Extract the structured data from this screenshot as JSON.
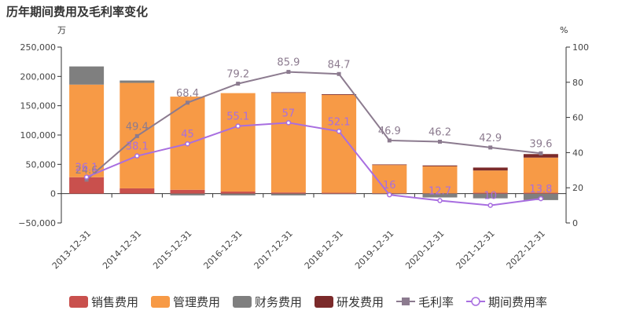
{
  "chart_data": {
    "type": "bar",
    "title": "历年期间费用及毛利率变化",
    "left_unit": "万",
    "right_unit": "%",
    "categories": [
      "2013-12-31",
      "2014-12-31",
      "2015-12-31",
      "2016-12-31",
      "2017-12-31",
      "2018-12-31",
      "2019-12-31",
      "2020-12-31",
      "2021-12-31",
      "2022-12-31"
    ],
    "left_axis": {
      "min": -50000,
      "max": 250000,
      "ticks": [
        -50000,
        0,
        50000,
        100000,
        150000,
        200000,
        250000
      ],
      "tick_labels": [
        "−50,000",
        "0",
        "50,000",
        "100,000",
        "150,000",
        "200,000",
        "250,000"
      ]
    },
    "right_axis": {
      "min": 0,
      "max": 100,
      "ticks": [
        0,
        20,
        40,
        60,
        80,
        100
      ],
      "tick_labels": [
        "0",
        "20",
        "40",
        "60",
        "80",
        "100"
      ]
    },
    "bar_series": [
      {
        "name": "销售费用",
        "color": "#c9504d",
        "values": [
          28000,
          9000,
          6500,
          3500,
          2000,
          1500,
          800,
          600,
          1500,
          1500
        ]
      },
      {
        "name": "管理费用",
        "color": "#f79a46",
        "values": [
          158000,
          180000,
          159000,
          168000,
          170000,
          167000,
          48000,
          46000,
          38000,
          60000
        ]
      },
      {
        "name": "财务费用",
        "color": "#7f7f7f",
        "values": [
          31000,
          4000,
          -3000,
          -3000,
          -3000,
          -1000,
          -1000,
          -6500,
          -8000,
          -11000
        ]
      },
      {
        "name": "研发费用",
        "color": "#7b2a2a",
        "values": [
          0,
          0,
          0,
          0,
          1000,
          1200,
          1000,
          1500,
          5000,
          6000
        ]
      }
    ],
    "line_series": [
      {
        "name": "毛利率",
        "color": "#8c7b8f",
        "marker": "square",
        "values": [
          24.6,
          49.4,
          68.4,
          79.2,
          85.9,
          84.7,
          46.9,
          46.2,
          42.9,
          39.6
        ],
        "labels": [
          "24.6",
          "49.4",
          "68.4",
          "79.2",
          "85.9",
          "84.7",
          "46.9",
          "46.2",
          "42.9",
          "39.6"
        ]
      },
      {
        "name": "期间费用率",
        "color": "#a86ee0",
        "marker": "circle",
        "values": [
          26.1,
          38.1,
          45,
          55.1,
          57,
          52.1,
          16,
          12.7,
          10,
          13.8
        ],
        "labels": [
          "26.1",
          "38.1",
          "45",
          "55.1",
          "57",
          "52.1",
          "16",
          "12.7",
          "10",
          "13.8"
        ]
      }
    ],
    "grid": false,
    "legend_position": "bottom"
  }
}
